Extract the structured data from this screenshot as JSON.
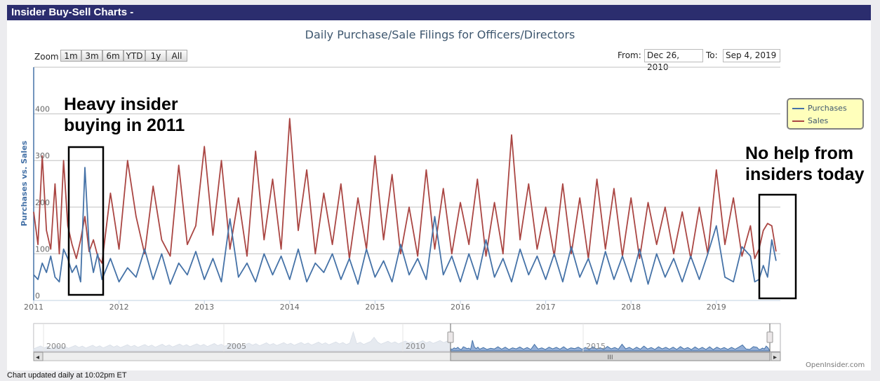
{
  "header": {
    "title": "Insider Buy-Sell Charts -"
  },
  "chart_data": {
    "type": "line",
    "title": "Daily Purchase/Sale Filings for Officers/Directors",
    "ylabel": "Purchases vs. Sales",
    "xlabel": "",
    "ylim": [
      0,
      500
    ],
    "xlim": [
      2011.0,
      2019.75
    ],
    "y_ticks": [
      "0",
      "100",
      "200",
      "300",
      "400"
    ],
    "x_ticks": [
      "2011",
      "2012",
      "2013",
      "2014",
      "2015",
      "2016",
      "2017",
      "2018",
      "2019"
    ],
    "series": [
      {
        "name": "Purchases",
        "color": "#4572a7",
        "x": [
          2011.0,
          2011.05,
          2011.1,
          2011.15,
          2011.2,
          2011.25,
          2011.3,
          2011.35,
          2011.4,
          2011.45,
          2011.5,
          2011.55,
          2011.6,
          2011.65,
          2011.7,
          2011.75,
          2011.8,
          2011.9,
          2012.0,
          2012.1,
          2012.2,
          2012.3,
          2012.4,
          2012.5,
          2012.6,
          2012.7,
          2012.8,
          2012.9,
          2013.0,
          2013.1,
          2013.2,
          2013.3,
          2013.4,
          2013.5,
          2013.6,
          2013.7,
          2013.8,
          2013.9,
          2014.0,
          2014.1,
          2014.2,
          2014.3,
          2014.4,
          2014.5,
          2014.6,
          2014.7,
          2014.8,
          2014.9,
          2015.0,
          2015.1,
          2015.2,
          2015.3,
          2015.4,
          2015.5,
          2015.6,
          2015.7,
          2015.8,
          2015.9,
          2016.0,
          2016.1,
          2016.2,
          2016.3,
          2016.4,
          2016.5,
          2016.6,
          2016.7,
          2016.8,
          2016.9,
          2017.0,
          2017.1,
          2017.2,
          2017.3,
          2017.4,
          2017.5,
          2017.6,
          2017.7,
          2017.8,
          2017.9,
          2018.0,
          2018.1,
          2018.2,
          2018.3,
          2018.4,
          2018.5,
          2018.6,
          2018.7,
          2018.8,
          2018.9,
          2019.0,
          2019.1,
          2019.2,
          2019.3,
          2019.4,
          2019.45,
          2019.5,
          2019.55,
          2019.6,
          2019.65,
          2019.7
        ],
        "values": [
          55,
          45,
          80,
          60,
          95,
          50,
          40,
          110,
          90,
          60,
          75,
          40,
          285,
          115,
          60,
          100,
          45,
          90,
          40,
          70,
          50,
          110,
          45,
          100,
          35,
          80,
          55,
          105,
          45,
          90,
          40,
          175,
          50,
          80,
          40,
          100,
          55,
          95,
          45,
          110,
          40,
          80,
          60,
          100,
          45,
          90,
          35,
          110,
          50,
          85,
          40,
          120,
          55,
          90,
          45,
          180,
          55,
          95,
          40,
          100,
          45,
          130,
          50,
          90,
          40,
          110,
          55,
          95,
          45,
          100,
          40,
          115,
          50,
          90,
          35,
          105,
          45,
          95,
          40,
          110,
          35,
          100,
          50,
          90,
          40,
          95,
          45,
          100,
          160,
          50,
          40,
          115,
          95,
          40,
          45,
          75,
          50,
          130,
          85
        ]
      },
      {
        "name": "Sales",
        "color": "#aa4643",
        "x": [
          2011.0,
          2011.05,
          2011.1,
          2011.15,
          2011.2,
          2011.25,
          2011.3,
          2011.35,
          2011.4,
          2011.45,
          2011.5,
          2011.55,
          2011.6,
          2011.65,
          2011.7,
          2011.75,
          2011.8,
          2011.9,
          2012.0,
          2012.1,
          2012.2,
          2012.3,
          2012.4,
          2012.5,
          2012.6,
          2012.7,
          2012.8,
          2012.9,
          2013.0,
          2013.1,
          2013.2,
          2013.3,
          2013.4,
          2013.5,
          2013.6,
          2013.7,
          2013.8,
          2013.9,
          2014.0,
          2014.1,
          2014.2,
          2014.3,
          2014.4,
          2014.5,
          2014.6,
          2014.7,
          2014.8,
          2014.9,
          2015.0,
          2015.1,
          2015.2,
          2015.3,
          2015.4,
          2015.5,
          2015.6,
          2015.7,
          2015.8,
          2015.9,
          2016.0,
          2016.1,
          2016.2,
          2016.3,
          2016.4,
          2016.5,
          2016.6,
          2016.7,
          2016.8,
          2016.9,
          2017.0,
          2017.1,
          2017.2,
          2017.3,
          2017.4,
          2017.5,
          2017.6,
          2017.7,
          2017.8,
          2017.9,
          2018.0,
          2018.1,
          2018.2,
          2018.3,
          2018.4,
          2018.5,
          2018.6,
          2018.7,
          2018.8,
          2018.9,
          2019.0,
          2019.1,
          2019.2,
          2019.3,
          2019.4,
          2019.45,
          2019.5,
          2019.55,
          2019.6,
          2019.65,
          2019.7
        ],
        "values": [
          190,
          120,
          310,
          150,
          110,
          250,
          100,
          300,
          160,
          120,
          90,
          130,
          180,
          105,
          130,
          95,
          80,
          230,
          110,
          300,
          180,
          100,
          245,
          130,
          95,
          290,
          120,
          160,
          330,
          140,
          300,
          110,
          220,
          95,
          320,
          130,
          260,
          110,
          390,
          150,
          280,
          100,
          230,
          120,
          250,
          90,
          220,
          110,
          310,
          130,
          270,
          100,
          200,
          95,
          280,
          110,
          240,
          100,
          210,
          120,
          260,
          95,
          210,
          100,
          355,
          130,
          250,
          110,
          200,
          95,
          250,
          100,
          220,
          90,
          260,
          110,
          240,
          95,
          220,
          90,
          210,
          120,
          200,
          100,
          190,
          90,
          200,
          100,
          280,
          120,
          220,
          95,
          160,
          90,
          110,
          150,
          165,
          160,
          105
        ]
      }
    ],
    "legend": [
      "Purchases",
      "Sales"
    ],
    "legend_position": "right",
    "navigator": {
      "tick_labels": [
        "2000",
        "2005",
        "2010",
        "2015"
      ],
      "selected_range": [
        2011.0,
        2019.75
      ]
    }
  },
  "zoom": {
    "label": "Zoom",
    "buttons": [
      "1m",
      "3m",
      "6m",
      "YTD",
      "1y",
      "All"
    ]
  },
  "range": {
    "from_label": "From:",
    "from_value": "Dec 26, 2010",
    "to_label": "To:",
    "to_value": "Sep 4, 2019"
  },
  "annotations": {
    "left_line1": "Heavy insider",
    "left_line2": "buying in 2011",
    "right_line1": "No help from",
    "right_line2": "insiders today"
  },
  "scrollbar": {
    "thumb_glyph": "III",
    "left_arrow": "◂",
    "right_arrow": "▸"
  },
  "footer": "Chart updated daily at 10:02pm ET",
  "credit": "OpenInsider.com"
}
